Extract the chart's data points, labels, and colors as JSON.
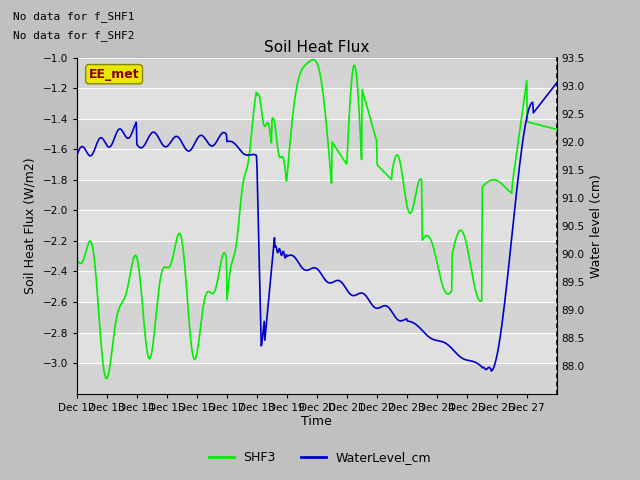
{
  "title": "Soil Heat Flux",
  "xlabel": "Time",
  "ylabel_left": "Soil Heat Flux (W/m2)",
  "ylabel_right": "Water level (cm)",
  "text_no_data": [
    "No data for f_SHF1",
    "No data for f_SHF2"
  ],
  "box_label": "EE_met",
  "box_color": "#e8e800",
  "box_text_color": "#880000",
  "ylim_left": [
    -3.2,
    -1.0
  ],
  "ylim_right": [
    87.5,
    93.5
  ],
  "yticks_left": [
    -3.0,
    -2.8,
    -2.6,
    -2.4,
    -2.2,
    -2.0,
    -1.8,
    -1.6,
    -1.4,
    -1.2,
    -1.0
  ],
  "yticks_right": [
    88.0,
    88.5,
    89.0,
    89.5,
    90.0,
    90.5,
    91.0,
    91.5,
    92.0,
    92.5,
    93.0,
    93.5
  ],
  "xtick_labels": [
    "Dec 12",
    "Dec 13",
    "Dec 14",
    "Dec 15",
    "Dec 16",
    "Dec 17",
    "Dec 18",
    "Dec 19",
    "Dec 20",
    "Dec 21",
    "Dec 22",
    "Dec 23",
    "Dec 24",
    "Dec 25",
    "Dec 26",
    "Dec 27"
  ],
  "shf3_color": "#00ee00",
  "water_color": "#0000cc",
  "fig_facecolor": "#c0c0c0",
  "plot_bg_color": "#d4d4d4",
  "legend_shf3": "SHF3",
  "legend_water": "WaterLevel_cm"
}
